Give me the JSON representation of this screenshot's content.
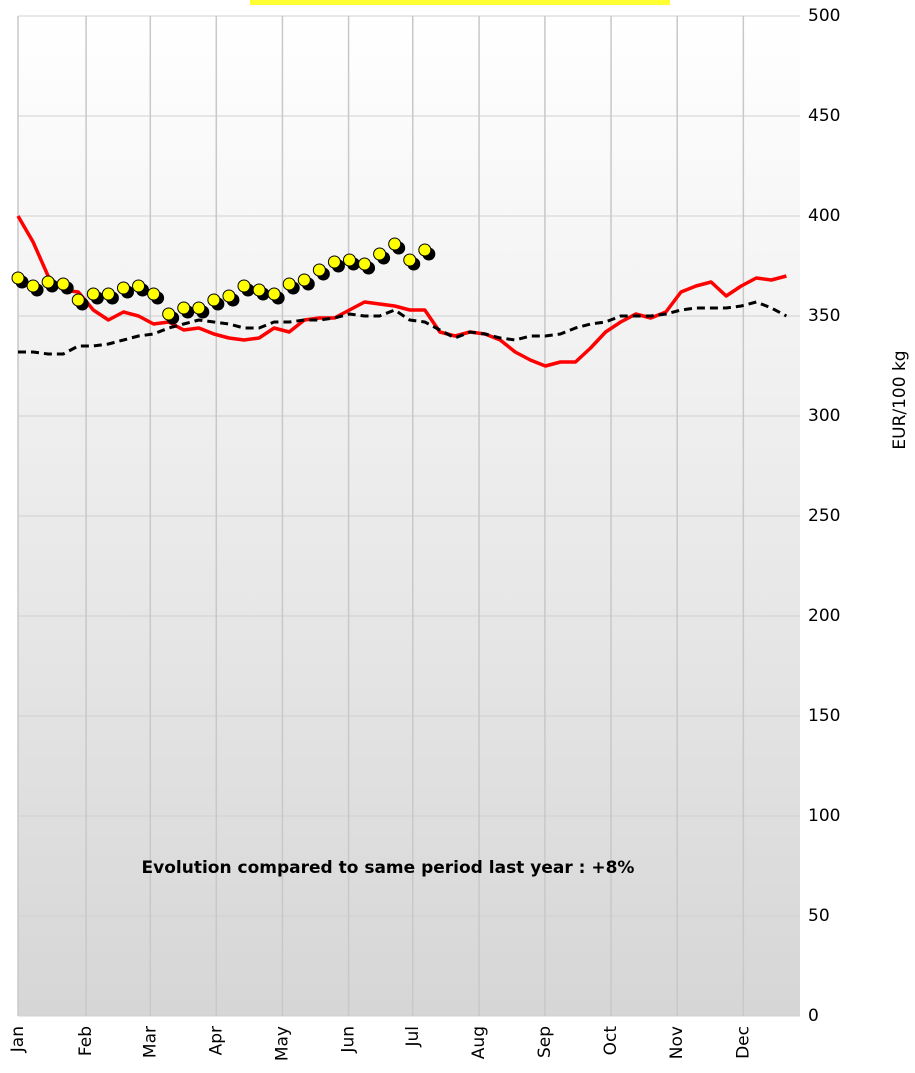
{
  "chart_data": {
    "type": "line",
    "annotation": "Evolution compared to same period last year : +8%",
    "y_label": "EUR/100 kg",
    "x": [
      1,
      2,
      3,
      4,
      5,
      6,
      7,
      8,
      9,
      10,
      11,
      12,
      13,
      14,
      15,
      16,
      17,
      18,
      19,
      20,
      21,
      22,
      23,
      24,
      25,
      26,
      27,
      28,
      29,
      30,
      31,
      32,
      33,
      34,
      35,
      36,
      37,
      38,
      39,
      40,
      41,
      42,
      43,
      44,
      45,
      46,
      47,
      48,
      49,
      50,
      51,
      52
    ],
    "xlim": [
      1,
      52.9
    ],
    "xticks": [
      {
        "value": 1,
        "label": "Jan"
      },
      {
        "value": 5.52,
        "label": "Feb"
      },
      {
        "value": 9.78,
        "label": "Mar"
      },
      {
        "value": 14.16,
        "label": "Apr"
      },
      {
        "value": 18.55,
        "label": "May"
      },
      {
        "value": 22.94,
        "label": "Jun"
      },
      {
        "value": 27.2,
        "label": "Jul"
      },
      {
        "value": 31.6,
        "label": "Aug"
      },
      {
        "value": 35.97,
        "label": "Sep"
      },
      {
        "value": 40.36,
        "label": "Oct"
      },
      {
        "value": 44.75,
        "label": "Nov"
      },
      {
        "value": 49.14,
        "label": "Dec"
      }
    ],
    "ylim": [
      0,
      500
    ],
    "yticks": [
      0,
      50,
      100,
      150,
      200,
      250,
      300,
      350,
      400,
      450,
      500
    ],
    "grid": true,
    "series": [
      {
        "color": "#ff0000",
        "style": "solid",
        "values": [
          400,
          387,
          370,
          363,
          362,
          353,
          348,
          352,
          350,
          346,
          347,
          343,
          344,
          341,
          339,
          338,
          339,
          344,
          342,
          348,
          349,
          349,
          353,
          357,
          356,
          355,
          353,
          353,
          342,
          340,
          342,
          341,
          338,
          332,
          328,
          325,
          327,
          327,
          334,
          342,
          347,
          351,
          349,
          352,
          362,
          365,
          367,
          360,
          365,
          369,
          368,
          370
        ]
      },
      {
        "color": "#000000",
        "style": "dashed",
        "values": [
          332,
          332,
          331,
          331,
          335,
          335,
          336,
          338,
          340,
          341,
          344,
          346,
          348,
          347,
          346,
          344,
          344,
          347,
          347,
          348,
          348,
          349,
          351,
          350,
          350,
          353,
          348,
          347,
          343,
          339,
          342,
          341,
          339,
          338,
          340,
          340,
          341,
          344,
          346,
          347,
          350,
          350,
          350,
          351,
          353,
          354,
          354,
          354,
          355,
          357,
          354,
          350
        ]
      },
      {
        "color": "#ffff00",
        "style": "markers",
        "values": [
          369,
          365,
          367,
          366,
          358,
          361,
          361,
          364,
          365,
          361,
          351,
          354,
          354,
          358,
          360,
          365,
          363,
          361,
          366,
          368,
          373,
          377,
          378,
          376,
          381,
          386,
          378,
          383,
          null,
          null,
          null,
          null,
          null,
          null,
          null,
          null,
          null,
          null,
          null,
          null,
          null,
          null,
          null,
          null,
          null,
          null,
          null,
          null,
          null,
          null,
          null,
          null
        ]
      }
    ]
  }
}
